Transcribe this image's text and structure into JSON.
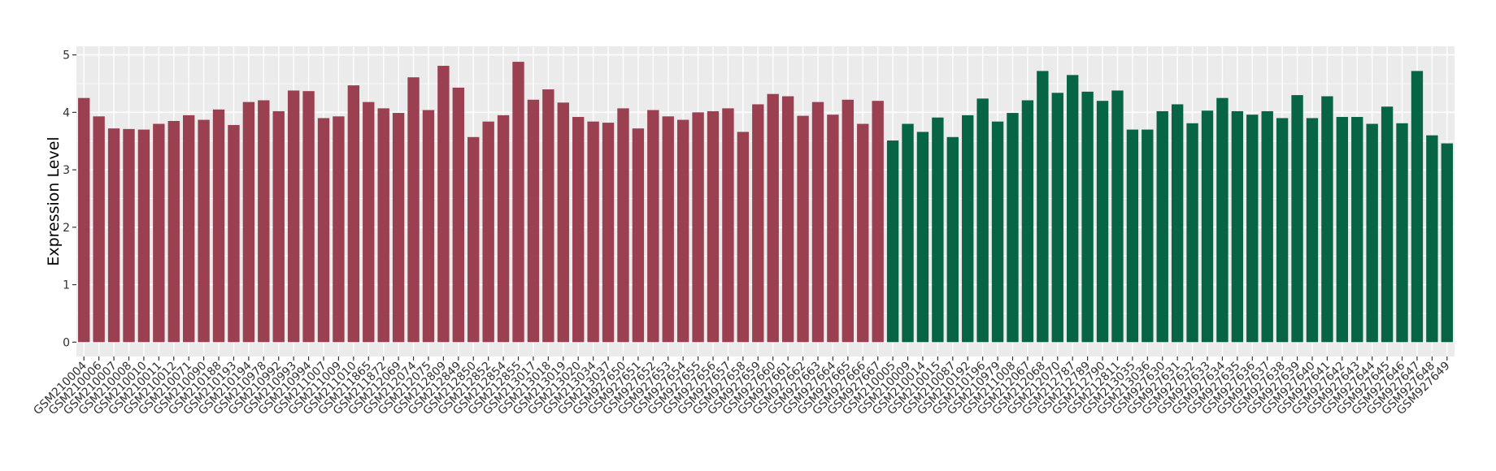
{
  "chart_data": {
    "type": "bar",
    "title": "",
    "xlabel": "",
    "ylabel": "Expression Level",
    "ylim": [
      -0.25,
      5.15
    ],
    "yticks": [
      0,
      1,
      2,
      3,
      4,
      5
    ],
    "grid": true,
    "legend": "none",
    "colors": {
      "group1": "#9B4050",
      "group2": "#076545",
      "panel": "#EBEBEB",
      "grid": "#FFFFFF"
    },
    "categories": [
      "GSM210004",
      "GSM210006",
      "GSM210007",
      "GSM210008",
      "GSM210010",
      "GSM210011",
      "GSM210012",
      "GSM210071",
      "GSM210090",
      "GSM210188",
      "GSM210193",
      "GSM210194",
      "GSM210978",
      "GSM210992",
      "GSM210993",
      "GSM210994",
      "GSM211007",
      "GSM211009",
      "GSM211010",
      "GSM211865",
      "GSM211872",
      "GSM212069",
      "GSM212074",
      "GSM212075",
      "GSM212809",
      "GSM212849",
      "GSM212850",
      "GSM212852",
      "GSM212854",
      "GSM212855",
      "GSM213017",
      "GSM213018",
      "GSM213019",
      "GSM213020",
      "GSM213034",
      "GSM213037",
      "GSM927650",
      "GSM927651",
      "GSM927652",
      "GSM927653",
      "GSM927654",
      "GSM927655",
      "GSM927656",
      "GSM927657",
      "GSM927658",
      "GSM927659",
      "GSM927660",
      "GSM927661",
      "GSM927662",
      "GSM927663",
      "GSM927664",
      "GSM927665",
      "GSM927666",
      "GSM927667",
      "GSM210005",
      "GSM210009",
      "GSM210014",
      "GSM210015",
      "GSM210087",
      "GSM210192",
      "GSM210196",
      "GSM210979",
      "GSM211008",
      "GSM212067",
      "GSM212068",
      "GSM212070",
      "GSM212787",
      "GSM212789",
      "GSM212790",
      "GSM212811",
      "GSM213035",
      "GSM213036",
      "GSM927630",
      "GSM927631",
      "GSM927632",
      "GSM927633",
      "GSM927634",
      "GSM927635",
      "GSM927636",
      "GSM927637",
      "GSM927638",
      "GSM927639",
      "GSM927640",
      "GSM927641",
      "GSM927642",
      "GSM927643",
      "GSM927644",
      "GSM927645",
      "GSM927646",
      "GSM927647",
      "GSM927648",
      "GSM927649"
    ],
    "values": [
      4.25,
      3.93,
      3.72,
      3.71,
      3.7,
      3.8,
      3.85,
      3.95,
      3.87,
      4.05,
      3.78,
      4.18,
      4.21,
      4.02,
      4.38,
      4.37,
      3.9,
      3.93,
      4.47,
      4.18,
      4.07,
      3.99,
      4.61,
      4.04,
      4.81,
      4.43,
      3.57,
      3.84,
      3.95,
      4.88,
      4.22,
      4.4,
      4.17,
      3.92,
      3.84,
      3.82,
      4.07,
      3.72,
      4.04,
      3.93,
      3.87,
      4.0,
      4.02,
      4.07,
      3.66,
      4.14,
      4.32,
      4.28,
      3.94,
      4.18,
      3.96,
      4.22,
      3.8,
      4.2,
      3.51,
      3.8,
      3.66,
      3.91,
      3.57,
      3.95,
      4.24,
      3.84,
      3.99,
      4.21,
      4.72,
      4.34,
      4.65,
      4.36,
      4.2,
      4.38,
      3.7,
      3.7,
      4.02,
      4.14,
      3.81,
      4.03,
      4.25,
      4.02,
      3.96,
      4.02,
      3.9,
      4.3,
      3.9,
      4.28,
      3.92,
      3.92,
      3.8,
      4.1,
      3.81,
      4.72,
      3.6,
      3.46
    ],
    "groups": [
      1,
      1,
      1,
      1,
      1,
      1,
      1,
      1,
      1,
      1,
      1,
      1,
      1,
      1,
      1,
      1,
      1,
      1,
      1,
      1,
      1,
      1,
      1,
      1,
      1,
      1,
      1,
      1,
      1,
      1,
      1,
      1,
      1,
      1,
      1,
      1,
      1,
      1,
      1,
      1,
      1,
      1,
      1,
      1,
      1,
      1,
      1,
      1,
      1,
      1,
      1,
      1,
      1,
      1,
      2,
      2,
      2,
      2,
      2,
      2,
      2,
      2,
      2,
      2,
      2,
      2,
      2,
      2,
      2,
      2,
      2,
      2,
      2,
      2,
      2,
      2,
      2,
      2,
      2,
      2,
      2,
      2,
      2,
      2,
      2,
      2,
      2,
      2,
      2,
      2,
      2,
      2
    ]
  }
}
